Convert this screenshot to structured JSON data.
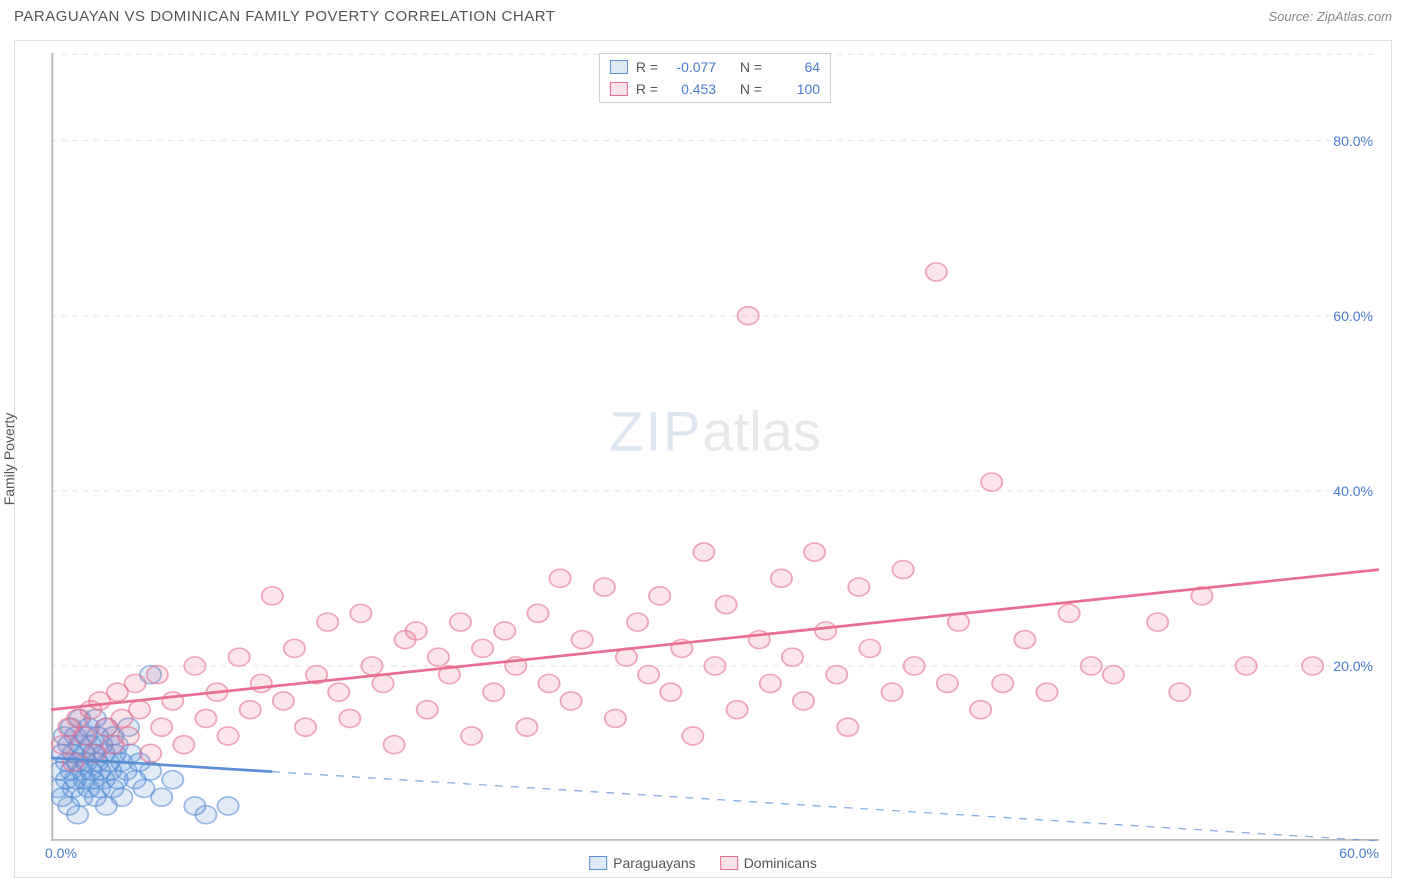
{
  "header": {
    "title": "PARAGUAYAN VS DOMINICAN FAMILY POVERTY CORRELATION CHART",
    "source": "Source: ZipAtlas.com"
  },
  "chart": {
    "type": "scatter",
    "ylabel": "Family Poverty",
    "xlim": [
      0,
      60
    ],
    "ylim": [
      0,
      90
    ],
    "xticks": [
      {
        "v": 0,
        "label": "0.0%"
      },
      {
        "v": 60,
        "label": "60.0%"
      }
    ],
    "yticks": [
      {
        "v": 20,
        "label": "20.0%"
      },
      {
        "v": 40,
        "label": "40.0%"
      },
      {
        "v": 60,
        "label": "60.0%"
      },
      {
        "v": 80,
        "label": "80.0%"
      }
    ],
    "background_color": "#ffffff",
    "grid_color": "#e5e5e5",
    "axis_color": "#bbbbbb",
    "tick_text_color": "#4a7bd0",
    "label_text_color": "#555555",
    "marker_radius": 8,
    "marker_stroke_width": 1.4,
    "marker_fill_opacity": 0.18,
    "trend_line_width": 2.4,
    "watermark": {
      "part1": "ZIP",
      "part2": "atlas"
    },
    "series": [
      {
        "name": "Paraguayans",
        "color_stroke": "#5a8fd6",
        "color_fill": "#5a8fd6",
        "r_value": "-0.077",
        "n_value": "64",
        "trend": {
          "x1": 0,
          "y1": 9.5,
          "x2": 60,
          "y2": 0,
          "dash_after_x": 10
        },
        "points": [
          [
            0.3,
            6
          ],
          [
            0.4,
            8
          ],
          [
            0.5,
            10
          ],
          [
            0.5,
            5
          ],
          [
            0.6,
            12
          ],
          [
            0.7,
            7
          ],
          [
            0.7,
            9
          ],
          [
            0.8,
            11
          ],
          [
            0.8,
            4
          ],
          [
            0.9,
            8
          ],
          [
            0.9,
            13
          ],
          [
            1.0,
            6
          ],
          [
            1.0,
            10
          ],
          [
            1.1,
            7
          ],
          [
            1.1,
            12
          ],
          [
            1.2,
            9
          ],
          [
            1.2,
            3
          ],
          [
            1.3,
            11
          ],
          [
            1.3,
            14
          ],
          [
            1.4,
            8
          ],
          [
            1.4,
            5
          ],
          [
            1.5,
            10
          ],
          [
            1.5,
            7
          ],
          [
            1.6,
            12
          ],
          [
            1.6,
            9
          ],
          [
            1.7,
            6
          ],
          [
            1.7,
            13
          ],
          [
            1.8,
            8
          ],
          [
            1.8,
            11
          ],
          [
            1.9,
            7
          ],
          [
            1.9,
            10
          ],
          [
            2.0,
            14
          ],
          [
            2.0,
            5
          ],
          [
            2.1,
            9
          ],
          [
            2.1,
            12
          ],
          [
            2.2,
            8
          ],
          [
            2.2,
            6
          ],
          [
            2.3,
            11
          ],
          [
            2.4,
            7
          ],
          [
            2.4,
            10
          ],
          [
            2.5,
            13
          ],
          [
            2.5,
            4
          ],
          [
            2.6,
            9
          ],
          [
            2.7,
            8
          ],
          [
            2.8,
            12
          ],
          [
            2.8,
            6
          ],
          [
            2.9,
            10
          ],
          [
            3.0,
            7
          ],
          [
            3.0,
            11
          ],
          [
            3.2,
            9
          ],
          [
            3.2,
            5
          ],
          [
            3.4,
            8
          ],
          [
            3.5,
            13
          ],
          [
            3.6,
            10
          ],
          [
            3.8,
            7
          ],
          [
            4.0,
            9
          ],
          [
            4.2,
            6
          ],
          [
            4.5,
            8
          ],
          [
            4.5,
            19
          ],
          [
            5.0,
            5
          ],
          [
            5.5,
            7
          ],
          [
            6.5,
            4
          ],
          [
            7.0,
            3
          ],
          [
            8.0,
            4
          ]
        ]
      },
      {
        "name": "Dominicans",
        "color_stroke": "#e86f91",
        "color_fill": "#e86f91",
        "r_value": "0.453",
        "n_value": "100",
        "trend": {
          "x1": 0,
          "y1": 15,
          "x2": 60,
          "y2": 31,
          "dash_after_x": null
        },
        "points": [
          [
            0.5,
            11
          ],
          [
            0.8,
            13
          ],
          [
            1.0,
            9
          ],
          [
            1.2,
            14
          ],
          [
            1.5,
            12
          ],
          [
            1.8,
            15
          ],
          [
            2.0,
            10
          ],
          [
            2.2,
            16
          ],
          [
            2.5,
            13
          ],
          [
            2.8,
            11
          ],
          [
            3.0,
            17
          ],
          [
            3.2,
            14
          ],
          [
            3.5,
            12
          ],
          [
            3.8,
            18
          ],
          [
            4.0,
            15
          ],
          [
            4.5,
            10
          ],
          [
            4.8,
            19
          ],
          [
            5.0,
            13
          ],
          [
            5.5,
            16
          ],
          [
            6.0,
            11
          ],
          [
            6.5,
            20
          ],
          [
            7.0,
            14
          ],
          [
            7.5,
            17
          ],
          [
            8.0,
            12
          ],
          [
            8.5,
            21
          ],
          [
            9.0,
            15
          ],
          [
            9.5,
            18
          ],
          [
            10.0,
            28
          ],
          [
            10.5,
            16
          ],
          [
            11.0,
            22
          ],
          [
            11.5,
            13
          ],
          [
            12.0,
            19
          ],
          [
            12.5,
            25
          ],
          [
            13.0,
            17
          ],
          [
            13.5,
            14
          ],
          [
            14.0,
            26
          ],
          [
            14.5,
            20
          ],
          [
            15.0,
            18
          ],
          [
            15.5,
            11
          ],
          [
            16.0,
            23
          ],
          [
            16.5,
            24
          ],
          [
            17.0,
            15
          ],
          [
            17.5,
            21
          ],
          [
            18.0,
            19
          ],
          [
            18.5,
            25
          ],
          [
            19.0,
            12
          ],
          [
            19.5,
            22
          ],
          [
            20.0,
            17
          ],
          [
            20.5,
            24
          ],
          [
            21.0,
            20
          ],
          [
            21.5,
            13
          ],
          [
            22.0,
            26
          ],
          [
            22.5,
            18
          ],
          [
            23.0,
            30
          ],
          [
            23.5,
            16
          ],
          [
            24.0,
            23
          ],
          [
            25.0,
            29
          ],
          [
            25.5,
            14
          ],
          [
            26.0,
            21
          ],
          [
            26.5,
            25
          ],
          [
            27.0,
            19
          ],
          [
            27.5,
            28
          ],
          [
            28.0,
            17
          ],
          [
            28.5,
            22
          ],
          [
            29.0,
            12
          ],
          [
            29.5,
            33
          ],
          [
            30.0,
            20
          ],
          [
            30.5,
            27
          ],
          [
            31.0,
            15
          ],
          [
            31.5,
            60
          ],
          [
            32.0,
            23
          ],
          [
            32.5,
            18
          ],
          [
            33.0,
            30
          ],
          [
            33.5,
            21
          ],
          [
            34.0,
            16
          ],
          [
            34.5,
            33
          ],
          [
            35.0,
            24
          ],
          [
            35.5,
            19
          ],
          [
            36.0,
            13
          ],
          [
            36.5,
            29
          ],
          [
            37.0,
            22
          ],
          [
            38.0,
            17
          ],
          [
            38.5,
            31
          ],
          [
            39.0,
            20
          ],
          [
            40.0,
            65
          ],
          [
            40.5,
            18
          ],
          [
            41.0,
            25
          ],
          [
            42.0,
            15
          ],
          [
            42.5,
            41
          ],
          [
            43.0,
            18
          ],
          [
            44.0,
            23
          ],
          [
            45.0,
            17
          ],
          [
            46.0,
            26
          ],
          [
            47.0,
            20
          ],
          [
            48.0,
            19
          ],
          [
            50.0,
            25
          ],
          [
            51.0,
            17
          ],
          [
            52.0,
            28
          ],
          [
            54.0,
            20
          ],
          [
            57.0,
            20
          ]
        ]
      }
    ],
    "legend_top": {
      "r_label": "R =",
      "n_label": "N ="
    },
    "legend_bottom": [
      {
        "swatch_series": 0
      },
      {
        "swatch_series": 1
      }
    ]
  }
}
